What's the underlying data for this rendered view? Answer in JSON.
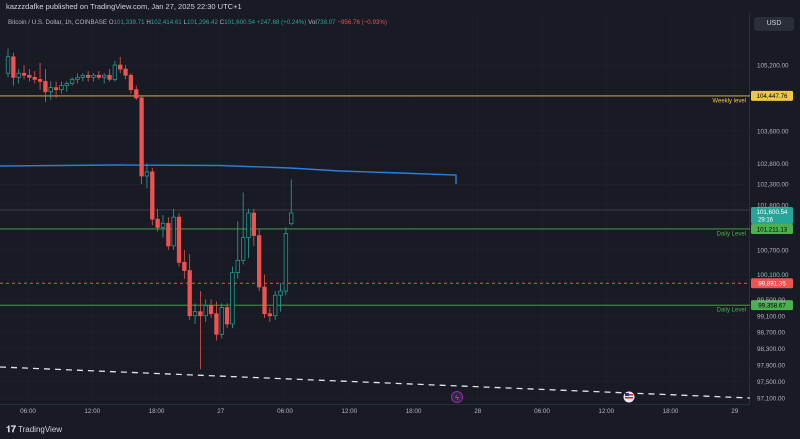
{
  "publisher": "kazzzdafke published on TradingView.com, Jan 27, 2025 22:30 UTC+1",
  "currency_button": "USD",
  "legend": {
    "symbol": "Bitcoin / U.S. Dollar, 1h, COINBASE",
    "o_label": "O",
    "o": "101,339.71",
    "h_label": "H",
    "h": "102,414.61",
    "l_label": "L",
    "l": "101,296.42",
    "c_label": "C",
    "c": "101,600.54",
    "change": "+247.68 (+0.24%)",
    "vol_label": "Vol",
    "vol": "738.07",
    "vol_change": "−956.76 (−0.93%)"
  },
  "brand": "TradingView",
  "colors": {
    "background": "#181a24",
    "up": "#26a69a",
    "down": "#ef5350",
    "weekly_level": "#f0c64a",
    "daily_level": "#4caf50",
    "ma": "#2a7de1",
    "red_dashed": "#ef5350",
    "last_price": "#26a69a"
  },
  "chart_data": {
    "type": "candlestick",
    "interval": "1h",
    "ylim": [
      96900,
      106200
    ],
    "y_ticks": [
      "97,100.00",
      "97,500.00",
      "97,900.00",
      "98,300.00",
      "98,700.00",
      "99,100.00",
      "99,500.00",
      "100,100.00",
      "100,700.00",
      "101,800.00",
      "102,300.00",
      "102,800.00",
      "103,600.00",
      "105,200.00"
    ],
    "x_ticks": [
      "06:00",
      "12:00",
      "18:00",
      "27",
      "06:00",
      "12:00",
      "18:00",
      "28",
      "06:00",
      "12:00",
      "18:00",
      "29"
    ],
    "levels": [
      {
        "price": 104447.76,
        "label": "Weekly level",
        "tag": "104,447.76",
        "color": "#f0c64a",
        "style": "solid"
      },
      {
        "price": 101211.13,
        "label": "Daily Level",
        "tag": "101,211.13",
        "color": "#4caf50",
        "style": "solid"
      },
      {
        "price": 99358.67,
        "label": "Daily Level",
        "tag": "99,358.67",
        "color": "#4caf50",
        "style": "solid"
      },
      {
        "price": 99891.35,
        "label": "",
        "tag": "99,891.35",
        "color": "#ef5350",
        "style": "dashed"
      }
    ],
    "last_price": {
      "price": 101600.54,
      "tag": "101,600.54",
      "countdown": "29:16"
    },
    "candles": [
      {
        "o": 105000,
        "h": 105600,
        "l": 104900,
        "c": 105400
      },
      {
        "o": 105400,
        "h": 105500,
        "l": 104700,
        "c": 104900
      },
      {
        "o": 104900,
        "h": 105100,
        "l": 104750,
        "c": 105000
      },
      {
        "o": 105000,
        "h": 105200,
        "l": 104850,
        "c": 104950
      },
      {
        "o": 104950,
        "h": 105100,
        "l": 104800,
        "c": 104900
      },
      {
        "o": 104900,
        "h": 105050,
        "l": 104750,
        "c": 104850
      },
      {
        "o": 104850,
        "h": 105250,
        "l": 104600,
        "c": 104800
      },
      {
        "o": 104800,
        "h": 105100,
        "l": 104300,
        "c": 104550
      },
      {
        "o": 104550,
        "h": 104800,
        "l": 104350,
        "c": 104650
      },
      {
        "o": 104650,
        "h": 104800,
        "l": 104400,
        "c": 104600
      },
      {
        "o": 104600,
        "h": 104800,
        "l": 104500,
        "c": 104700
      },
      {
        "o": 104700,
        "h": 104800,
        "l": 104550,
        "c": 104750
      },
      {
        "o": 104750,
        "h": 104900,
        "l": 104700,
        "c": 104850
      },
      {
        "o": 104850,
        "h": 105000,
        "l": 104750,
        "c": 104900
      },
      {
        "o": 104900,
        "h": 105000,
        "l": 104800,
        "c": 104950
      },
      {
        "o": 104950,
        "h": 105050,
        "l": 104800,
        "c": 104900
      },
      {
        "o": 104900,
        "h": 105000,
        "l": 104800,
        "c": 104950
      },
      {
        "o": 104950,
        "h": 105050,
        "l": 104850,
        "c": 104900
      },
      {
        "o": 104900,
        "h": 105000,
        "l": 104750,
        "c": 104950
      },
      {
        "o": 104950,
        "h": 105100,
        "l": 104800,
        "c": 104850
      },
      {
        "o": 104850,
        "h": 105300,
        "l": 104800,
        "c": 105200
      },
      {
        "o": 105200,
        "h": 105400,
        "l": 105000,
        "c": 105100
      },
      {
        "o": 105100,
        "h": 105200,
        "l": 104850,
        "c": 104950
      },
      {
        "o": 104950,
        "h": 105000,
        "l": 104500,
        "c": 104600
      },
      {
        "o": 104600,
        "h": 104700,
        "l": 104350,
        "c": 104400
      },
      {
        "o": 104400,
        "h": 104450,
        "l": 102300,
        "c": 102500
      },
      {
        "o": 102500,
        "h": 102800,
        "l": 102200,
        "c": 102600
      },
      {
        "o": 102600,
        "h": 102700,
        "l": 101300,
        "c": 101450
      },
      {
        "o": 101450,
        "h": 101700,
        "l": 101150,
        "c": 101250
      },
      {
        "o": 101250,
        "h": 101550,
        "l": 101000,
        "c": 101350
      },
      {
        "o": 101350,
        "h": 101500,
        "l": 100700,
        "c": 100800
      },
      {
        "o": 100800,
        "h": 101700,
        "l": 100700,
        "c": 101500
      },
      {
        "o": 101500,
        "h": 101600,
        "l": 100300,
        "c": 100400
      },
      {
        "o": 100400,
        "h": 100700,
        "l": 100000,
        "c": 100200
      },
      {
        "o": 100200,
        "h": 100600,
        "l": 99000,
        "c": 99100
      },
      {
        "o": 99100,
        "h": 99400,
        "l": 98900,
        "c": 99200
      },
      {
        "o": 99200,
        "h": 99700,
        "l": 97800,
        "c": 99100
      },
      {
        "o": 99100,
        "h": 99500,
        "l": 98950,
        "c": 99350
      },
      {
        "o": 99350,
        "h": 99500,
        "l": 99050,
        "c": 99150
      },
      {
        "o": 99150,
        "h": 99450,
        "l": 98500,
        "c": 98650
      },
      {
        "o": 98650,
        "h": 99400,
        "l": 98550,
        "c": 99300
      },
      {
        "o": 99300,
        "h": 99400,
        "l": 98800,
        "c": 98900
      },
      {
        "o": 98900,
        "h": 100300,
        "l": 98800,
        "c": 100150
      },
      {
        "o": 100150,
        "h": 101400,
        "l": 100000,
        "c": 100450
      },
      {
        "o": 100450,
        "h": 102100,
        "l": 100350,
        "c": 101000
      },
      {
        "o": 101000,
        "h": 101700,
        "l": 100500,
        "c": 101600
      },
      {
        "o": 101600,
        "h": 101700,
        "l": 100800,
        "c": 101050
      },
      {
        "o": 101050,
        "h": 101200,
        "l": 99700,
        "c": 99800
      },
      {
        "o": 99800,
        "h": 100100,
        "l": 99050,
        "c": 99150
      },
      {
        "o": 99150,
        "h": 99300,
        "l": 98950,
        "c": 99100
      },
      {
        "o": 99100,
        "h": 99700,
        "l": 99000,
        "c": 99600
      },
      {
        "o": 99600,
        "h": 99900,
        "l": 99200,
        "c": 99700
      },
      {
        "o": 99700,
        "h": 101250,
        "l": 99600,
        "c": 101100
      },
      {
        "o": 101339.71,
        "h": 102414.61,
        "l": 101296.42,
        "c": 101600.54
      }
    ]
  }
}
